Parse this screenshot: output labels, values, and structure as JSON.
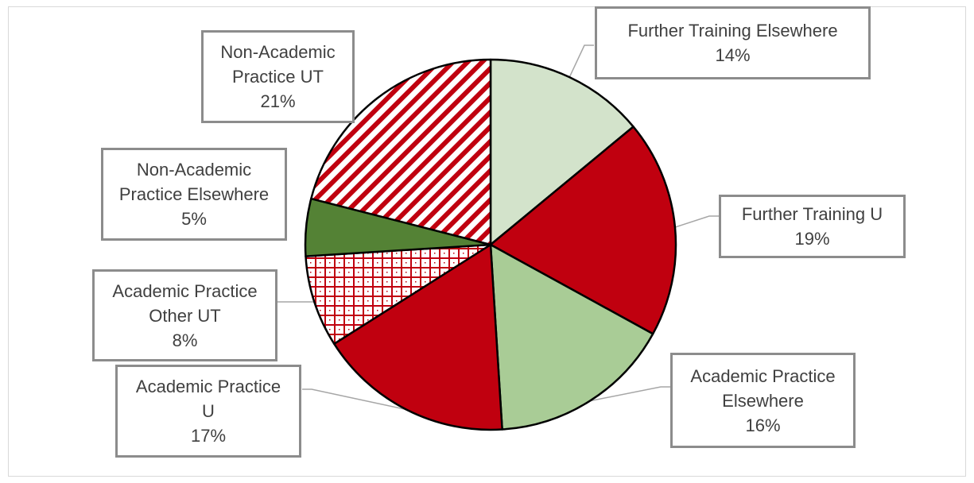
{
  "chart_data": {
    "type": "pie",
    "title": "",
    "slices": [
      {
        "name": "Further Training Elsewhere",
        "value": 14,
        "label_lines": [
          "Further Training Elsewhere",
          "14%"
        ],
        "color": "#d3e3cb",
        "pattern": "solid"
      },
      {
        "name": "Further Training U",
        "value": 19,
        "label_lines": [
          "Further Training U",
          "19%"
        ],
        "color": "#c0000f",
        "pattern": "solid"
      },
      {
        "name": "Academic Practice Elsewhere",
        "value": 16,
        "label_lines": [
          "Academic Practice",
          "Elsewhere",
          "16%"
        ],
        "color": "#a9cc96",
        "pattern": "solid"
      },
      {
        "name": "Academic Practice U",
        "value": 17,
        "label_lines": [
          "Academic Practice",
          "U",
          "17%"
        ],
        "color": "#c0000f",
        "pattern": "solid"
      },
      {
        "name": "Academic Practice Other UT",
        "value": 8,
        "label_lines": [
          "Academic Practice",
          "Other UT",
          "8%"
        ],
        "color": "#c0000f",
        "pattern": "grid"
      },
      {
        "name": "Non-Academic Practice Elsewhere",
        "value": 5,
        "label_lines": [
          "Non-Academic",
          "Practice Elsewhere",
          "5%"
        ],
        "color": "#548235",
        "pattern": "solid"
      },
      {
        "name": "Non-Academic Practice UT",
        "value": 21,
        "label_lines": [
          "Non-Academic",
          "Practice UT",
          "21%"
        ],
        "color": "#c0000f",
        "pattern": "diagonal"
      }
    ],
    "start_angle_deg": 0,
    "direction": "clockwise",
    "legend": "none",
    "labels": "callouts"
  }
}
